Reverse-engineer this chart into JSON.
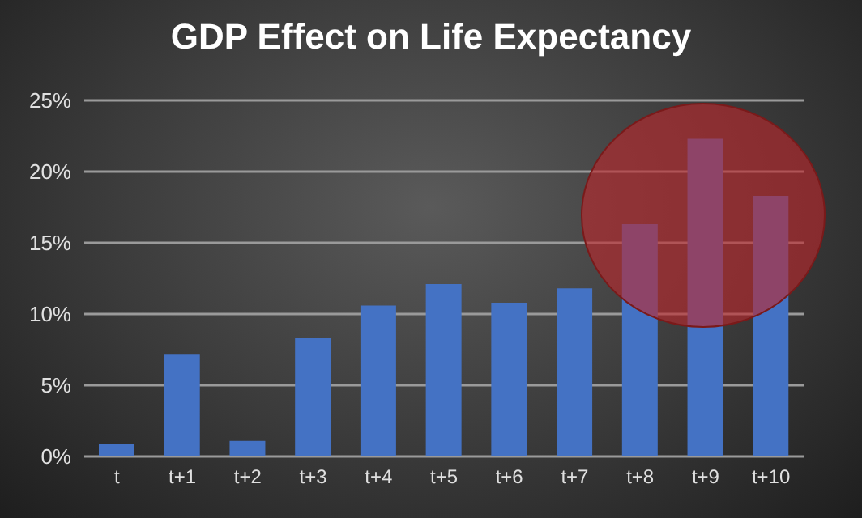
{
  "chart_data": {
    "type": "bar",
    "title": "GDP Effect on Life Expectancy",
    "categories": [
      "t",
      "t+1",
      "t+2",
      "t+3",
      "t+4",
      "t+5",
      "t+6",
      "t+7",
      "t+8",
      "t+9",
      "t+10"
    ],
    "values": [
      0.9,
      7.2,
      1.1,
      8.3,
      10.6,
      12.1,
      10.8,
      11.8,
      16.3,
      22.3,
      18.3
    ],
    "color": "#4472c4",
    "ylim": [
      0,
      25
    ],
    "yticks": [
      {
        "value": 0,
        "label": "0%"
      },
      {
        "value": 5,
        "label": "5%"
      },
      {
        "value": 10,
        "label": "10%"
      },
      {
        "value": 15,
        "label": "15%"
      },
      {
        "value": 20,
        "label": "20%"
      },
      {
        "value": 25,
        "label": "25%"
      }
    ],
    "grid": "y"
  }
}
